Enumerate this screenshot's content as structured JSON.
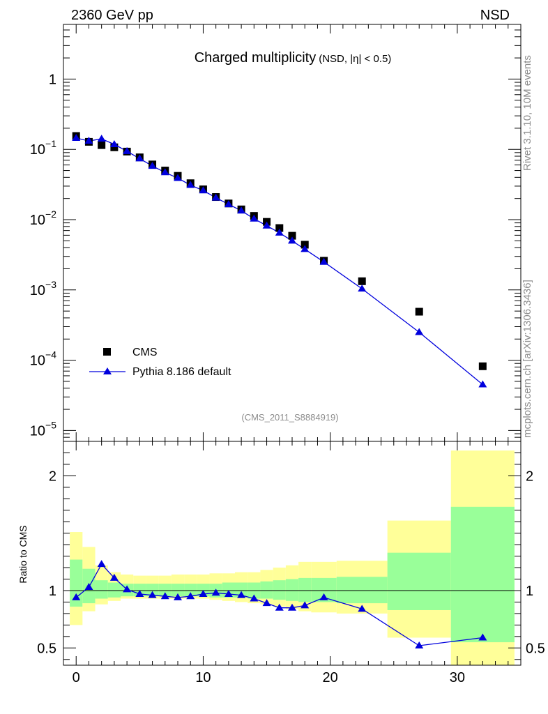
{
  "header": {
    "left_label": "2360 GeV pp",
    "right_label": "NSD"
  },
  "side_labels": {
    "rivet": "Rivet 3.1.10,  10M events",
    "mcplots": "mcplots.cern.ch [arXiv:1306.3436]"
  },
  "colors": {
    "mc_line": "#0000dd",
    "data_marker": "#000000",
    "band_inner": "#99ff99",
    "band_outer": "#ffff99",
    "gray_text": "#8c8c8c"
  },
  "chart_data": [
    {
      "type": "scatter",
      "panel": "main",
      "title": "Charged multiplicity",
      "title_suffix": "(NSD, |η| < 0.5)",
      "watermark": "(CMS_2011_S8884919)",
      "yscale": "log",
      "ylim": [
        7e-06,
        6.0
      ],
      "xlim": [
        -1,
        35
      ],
      "y_tick_labels": [
        {
          "value": 1,
          "base": "1",
          "exp": ""
        },
        {
          "value": 0.1,
          "base": "10",
          "exp": "−1"
        },
        {
          "value": 0.01,
          "base": "10",
          "exp": "−2"
        },
        {
          "value": 0.001,
          "base": "10",
          "exp": "−3"
        },
        {
          "value": 0.0001,
          "base": "10",
          "exp": "−4"
        },
        {
          "value": 1e-05,
          "base": "10",
          "exp": "−5"
        }
      ],
      "legend": {
        "position": "bottom-left",
        "entries": [
          {
            "label": "CMS",
            "marker": "square"
          },
          {
            "label": "Pythia 8.186 default",
            "marker": "triangle-line"
          }
        ]
      },
      "series": [
        {
          "name": "CMS",
          "x": [
            0,
            1,
            2,
            3,
            4,
            5,
            6,
            7,
            8,
            9,
            10,
            11,
            12,
            13,
            14,
            15,
            16,
            17,
            18,
            19.5,
            22.5,
            27,
            32
          ],
          "y": [
            0.155,
            0.128,
            0.115,
            0.107,
            0.093,
            0.077,
            0.061,
            0.05,
            0.042,
            0.033,
            0.027,
            0.021,
            0.017,
            0.014,
            0.0113,
            0.0093,
            0.0076,
            0.0059,
            0.0044,
            0.0026,
            0.00133,
            0.00049,
            8.2e-05
          ]
        },
        {
          "name": "Pythia 8.186 default",
          "x": [
            0,
            1,
            2,
            3,
            4,
            5,
            6,
            7,
            8,
            9,
            10,
            11,
            12,
            13,
            14,
            15,
            16,
            17,
            18,
            19.5,
            22.5,
            27,
            32
          ],
          "y": [
            0.145,
            0.132,
            0.141,
            0.118,
            0.094,
            0.074,
            0.058,
            0.047,
            0.039,
            0.031,
            0.026,
            0.0205,
            0.0165,
            0.0134,
            0.0103,
            0.0082,
            0.0065,
            0.005,
            0.0038,
            0.0025,
            0.00104,
            0.00025,
            4.5e-05
          ]
        }
      ]
    },
    {
      "type": "line",
      "panel": "ratio",
      "ylabel": "Ratio to CMS",
      "xlim": [
        -1,
        35
      ],
      "ylim": [
        0.35,
        2.3
      ],
      "x_tick_labels": [
        "0",
        "10",
        "20",
        "30"
      ],
      "x_tick_values": [
        0,
        10,
        20,
        30
      ],
      "y_tick_labels": [
        "0.5",
        "1",
        "2"
      ],
      "y_tick_values": [
        0.5,
        1,
        2
      ],
      "bins": [
        {
          "lo": -0.5,
          "hi": 0.5,
          "in_lo": 0.86,
          "in_hi": 1.27,
          "out_lo": 0.7,
          "out_hi": 1.51
        },
        {
          "lo": 0.5,
          "hi": 1.5,
          "in_lo": 0.89,
          "in_hi": 1.19,
          "out_lo": 0.82,
          "out_hi": 1.38
        },
        {
          "lo": 1.5,
          "hi": 2.5,
          "in_lo": 0.93,
          "in_hi": 1.09,
          "out_lo": 0.88,
          "out_hi": 1.22
        },
        {
          "lo": 2.5,
          "hi": 3.5,
          "in_lo": 0.94,
          "in_hi": 1.07,
          "out_lo": 0.91,
          "out_hi": 1.16
        },
        {
          "lo": 3.5,
          "hi": 4.5,
          "in_lo": 0.95,
          "in_hi": 1.06,
          "out_lo": 0.93,
          "out_hi": 1.14
        },
        {
          "lo": 4.5,
          "hi": 5.5,
          "in_lo": 0.95,
          "in_hi": 1.06,
          "out_lo": 0.93,
          "out_hi": 1.13
        },
        {
          "lo": 5.5,
          "hi": 6.5,
          "in_lo": 0.95,
          "in_hi": 1.06,
          "out_lo": 0.93,
          "out_hi": 1.13
        },
        {
          "lo": 6.5,
          "hi": 7.5,
          "in_lo": 0.95,
          "in_hi": 1.06,
          "out_lo": 0.93,
          "out_hi": 1.13
        },
        {
          "lo": 7.5,
          "hi": 8.5,
          "in_lo": 0.95,
          "in_hi": 1.06,
          "out_lo": 0.93,
          "out_hi": 1.14
        },
        {
          "lo": 8.5,
          "hi": 9.5,
          "in_lo": 0.95,
          "in_hi": 1.06,
          "out_lo": 0.93,
          "out_hi": 1.14
        },
        {
          "lo": 9.5,
          "hi": 10.5,
          "in_lo": 0.95,
          "in_hi": 1.06,
          "out_lo": 0.93,
          "out_hi": 1.14
        },
        {
          "lo": 10.5,
          "hi": 11.5,
          "in_lo": 0.94,
          "in_hi": 1.06,
          "out_lo": 0.92,
          "out_hi": 1.15
        },
        {
          "lo": 11.5,
          "hi": 12.5,
          "in_lo": 0.94,
          "in_hi": 1.07,
          "out_lo": 0.91,
          "out_hi": 1.15
        },
        {
          "lo": 12.5,
          "hi": 13.5,
          "in_lo": 0.94,
          "in_hi": 1.07,
          "out_lo": 0.9,
          "out_hi": 1.16
        },
        {
          "lo": 13.5,
          "hi": 14.5,
          "in_lo": 0.93,
          "in_hi": 1.07,
          "out_lo": 0.89,
          "out_hi": 1.16
        },
        {
          "lo": 14.5,
          "hi": 15.5,
          "in_lo": 0.93,
          "in_hi": 1.08,
          "out_lo": 0.88,
          "out_hi": 1.18
        },
        {
          "lo": 15.5,
          "hi": 16.5,
          "in_lo": 0.92,
          "in_hi": 1.09,
          "out_lo": 0.86,
          "out_hi": 1.2
        },
        {
          "lo": 16.5,
          "hi": 17.5,
          "in_lo": 0.91,
          "in_hi": 1.1,
          "out_lo": 0.84,
          "out_hi": 1.22
        },
        {
          "lo": 17.5,
          "hi": 18.5,
          "in_lo": 0.9,
          "in_hi": 1.11,
          "out_lo": 0.82,
          "out_hi": 1.25
        },
        {
          "lo": 18.5,
          "hi": 20.5,
          "in_lo": 0.9,
          "in_hi": 1.11,
          "out_lo": 0.81,
          "out_hi": 1.25
        },
        {
          "lo": 20.5,
          "hi": 24.5,
          "in_lo": 0.89,
          "in_hi": 1.12,
          "out_lo": 0.8,
          "out_hi": 1.26
        },
        {
          "lo": 24.5,
          "hi": 29.5,
          "in_lo": 0.83,
          "in_hi": 1.33,
          "out_lo": 0.59,
          "out_hi": 1.61
        },
        {
          "lo": 29.5,
          "hi": 34.5,
          "in_lo": 0.55,
          "in_hi": 1.73,
          "out_lo": 0.35,
          "out_hi": 2.22
        }
      ],
      "ratio": {
        "x": [
          0,
          1,
          2,
          3,
          4,
          5,
          6,
          7,
          8,
          9,
          10,
          11,
          12,
          13,
          14,
          15,
          16,
          17,
          18,
          19.5,
          22.5,
          27,
          32
        ],
        "y": [
          0.94,
          1.03,
          1.23,
          1.11,
          1.01,
          0.97,
          0.96,
          0.95,
          0.94,
          0.95,
          0.97,
          0.98,
          0.97,
          0.96,
          0.93,
          0.89,
          0.85,
          0.85,
          0.87,
          0.94,
          0.84,
          0.52,
          0.59
        ]
      }
    }
  ]
}
